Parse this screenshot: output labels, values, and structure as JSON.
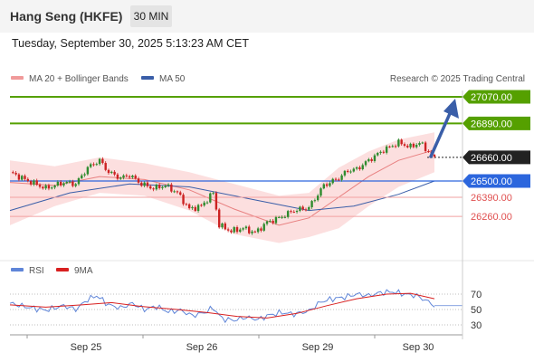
{
  "header": {
    "title": "Hang Seng (HKFE)",
    "timeframe": "30 MIN"
  },
  "datetime": "Tuesday, September 30, 2025 5:13:23 AM CET",
  "legend": {
    "ma20_label": "MA 20 + Bollinger Bands",
    "ma50_label": "MA 50",
    "rsi_label": "RSI",
    "rsi_ma_label": "9MA"
  },
  "copyright": "Research © 2025 Trading Central",
  "colors": {
    "candle_up": "#2e8b2e",
    "candle_down": "#cc2222",
    "ma20": "#e88080",
    "band": "#fcd9d9",
    "ma50": "#3a5ea8",
    "resistance": "#55a000",
    "support_pivot": "#2c66dd",
    "support": "#e05050",
    "current": "#222222",
    "rsi": "#5f85d8",
    "rsi_ma": "#d82020"
  },
  "chart_data": [
    {
      "type": "candlestick",
      "x_labels": [
        "Sep 25",
        "Sep 26",
        "Sep 29",
        "Sep 30"
      ],
      "levels": [
        {
          "value": 27070,
          "label": "27070.00",
          "kind": "resistance"
        },
        {
          "value": 26890,
          "label": "26890.00",
          "kind": "resistance"
        },
        {
          "value": 26660,
          "label": "26660.00",
          "kind": "current"
        },
        {
          "value": 26500,
          "label": "26500.00",
          "kind": "pivot"
        },
        {
          "value": 26390,
          "label": "26390.00",
          "kind": "support"
        },
        {
          "value": 26260,
          "label": "26260.00",
          "kind": "support"
        }
      ],
      "forecast_target": 27070,
      "close_path": [
        {
          "t": 0,
          "v": 26560
        },
        {
          "t": 5,
          "v": 26510
        },
        {
          "t": 12,
          "v": 26450
        },
        {
          "t": 18,
          "v": 26490
        },
        {
          "t": 22,
          "v": 26480
        },
        {
          "t": 26,
          "v": 26590
        },
        {
          "t": 30,
          "v": 26640
        },
        {
          "t": 33,
          "v": 26560
        },
        {
          "t": 37,
          "v": 26520
        },
        {
          "t": 40,
          "v": 26540
        },
        {
          "t": 44,
          "v": 26480
        },
        {
          "t": 48,
          "v": 26450
        },
        {
          "t": 52,
          "v": 26470
        },
        {
          "t": 56,
          "v": 26420
        },
        {
          "t": 60,
          "v": 26310
        },
        {
          "t": 64,
          "v": 26330
        },
        {
          "t": 68,
          "v": 26420
        },
        {
          "t": 70,
          "v": 26200
        },
        {
          "t": 74,
          "v": 26160
        },
        {
          "t": 78,
          "v": 26180
        },
        {
          "t": 82,
          "v": 26150
        },
        {
          "t": 86,
          "v": 26220
        },
        {
          "t": 90,
          "v": 26250
        },
        {
          "t": 95,
          "v": 26300
        },
        {
          "t": 100,
          "v": 26320
        },
        {
          "t": 105,
          "v": 26470
        },
        {
          "t": 110,
          "v": 26520
        },
        {
          "t": 113,
          "v": 26570
        },
        {
          "t": 116,
          "v": 26580
        },
        {
          "t": 120,
          "v": 26640
        },
        {
          "t": 125,
          "v": 26710
        },
        {
          "t": 130,
          "v": 26760
        },
        {
          "t": 134,
          "v": 26730
        },
        {
          "t": 137,
          "v": 26760
        },
        {
          "t": 140,
          "v": 26700
        },
        {
          "t": 142,
          "v": 26650
        }
      ],
      "ma20": [
        {
          "t": 0,
          "v": 26490
        },
        {
          "t": 15,
          "v": 26470
        },
        {
          "t": 30,
          "v": 26530
        },
        {
          "t": 45,
          "v": 26510
        },
        {
          "t": 60,
          "v": 26440
        },
        {
          "t": 75,
          "v": 26310
        },
        {
          "t": 90,
          "v": 26200
        },
        {
          "t": 100,
          "v": 26250
        },
        {
          "t": 110,
          "v": 26390
        },
        {
          "t": 120,
          "v": 26530
        },
        {
          "t": 130,
          "v": 26640
        },
        {
          "t": 142,
          "v": 26710
        }
      ],
      "band_upper": [
        {
          "t": 0,
          "v": 26640
        },
        {
          "t": 15,
          "v": 26600
        },
        {
          "t": 30,
          "v": 26660
        },
        {
          "t": 45,
          "v": 26620
        },
        {
          "t": 60,
          "v": 26560
        },
        {
          "t": 75,
          "v": 26480
        },
        {
          "t": 90,
          "v": 26400
        },
        {
          "t": 100,
          "v": 26420
        },
        {
          "t": 110,
          "v": 26590
        },
        {
          "t": 120,
          "v": 26700
        },
        {
          "t": 130,
          "v": 26780
        },
        {
          "t": 142,
          "v": 26830
        }
      ],
      "band_lower": [
        {
          "t": 0,
          "v": 26200
        },
        {
          "t": 15,
          "v": 26330
        },
        {
          "t": 30,
          "v": 26420
        },
        {
          "t": 45,
          "v": 26400
        },
        {
          "t": 60,
          "v": 26300
        },
        {
          "t": 75,
          "v": 26140
        },
        {
          "t": 90,
          "v": 26080
        },
        {
          "t": 100,
          "v": 26120
        },
        {
          "t": 110,
          "v": 26180
        },
        {
          "t": 120,
          "v": 26330
        },
        {
          "t": 130,
          "v": 26460
        },
        {
          "t": 142,
          "v": 26560
        }
      ],
      "ma50": [
        {
          "t": 0,
          "v": 26300
        },
        {
          "t": 20,
          "v": 26420
        },
        {
          "t": 40,
          "v": 26480
        },
        {
          "t": 60,
          "v": 26460
        },
        {
          "t": 80,
          "v": 26380
        },
        {
          "t": 100,
          "v": 26300
        },
        {
          "t": 115,
          "v": 26330
        },
        {
          "t": 130,
          "v": 26410
        },
        {
          "t": 142,
          "v": 26500
        }
      ]
    },
    {
      "type": "line",
      "y_ticks": [
        70,
        50,
        30
      ],
      "ylim": [
        20,
        80
      ],
      "series": [
        {
          "name": "RSI",
          "points": [
            {
              "t": 0,
              "v": 58
            },
            {
              "t": 6,
              "v": 53
            },
            {
              "t": 12,
              "v": 49
            },
            {
              "t": 18,
              "v": 55
            },
            {
              "t": 22,
              "v": 50
            },
            {
              "t": 26,
              "v": 63
            },
            {
              "t": 29,
              "v": 68
            },
            {
              "t": 33,
              "v": 56
            },
            {
              "t": 37,
              "v": 52
            },
            {
              "t": 41,
              "v": 58
            },
            {
              "t": 45,
              "v": 50
            },
            {
              "t": 49,
              "v": 54
            },
            {
              "t": 53,
              "v": 47
            },
            {
              "t": 57,
              "v": 49
            },
            {
              "t": 61,
              "v": 42
            },
            {
              "t": 65,
              "v": 46
            },
            {
              "t": 68,
              "v": 52
            },
            {
              "t": 71,
              "v": 38
            },
            {
              "t": 75,
              "v": 36
            },
            {
              "t": 79,
              "v": 40
            },
            {
              "t": 83,
              "v": 37
            },
            {
              "t": 87,
              "v": 43
            },
            {
              "t": 91,
              "v": 46
            },
            {
              "t": 95,
              "v": 44
            },
            {
              "t": 100,
              "v": 48
            },
            {
              "t": 104,
              "v": 60
            },
            {
              "t": 108,
              "v": 64
            },
            {
              "t": 112,
              "v": 66
            },
            {
              "t": 116,
              "v": 70
            },
            {
              "t": 120,
              "v": 68
            },
            {
              "t": 124,
              "v": 72
            },
            {
              "t": 128,
              "v": 73
            },
            {
              "t": 132,
              "v": 70
            },
            {
              "t": 136,
              "v": 68
            },
            {
              "t": 140,
              "v": 60
            },
            {
              "t": 142,
              "v": 55
            }
          ]
        },
        {
          "name": "9MA",
          "points": [
            {
              "t": 0,
              "v": 56
            },
            {
              "t": 12,
              "v": 53
            },
            {
              "t": 24,
              "v": 56
            },
            {
              "t": 34,
              "v": 59
            },
            {
              "t": 44,
              "v": 54
            },
            {
              "t": 56,
              "v": 50
            },
            {
              "t": 66,
              "v": 46
            },
            {
              "t": 76,
              "v": 41
            },
            {
              "t": 86,
              "v": 39
            },
            {
              "t": 96,
              "v": 45
            },
            {
              "t": 106,
              "v": 55
            },
            {
              "t": 116,
              "v": 64
            },
            {
              "t": 126,
              "v": 70
            },
            {
              "t": 134,
              "v": 71
            },
            {
              "t": 142,
              "v": 64
            }
          ]
        }
      ]
    }
  ]
}
